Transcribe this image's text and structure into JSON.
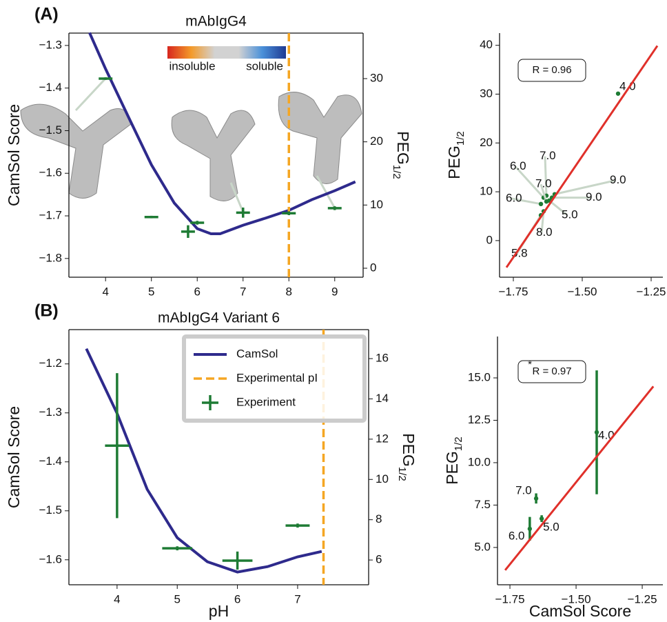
{
  "chart_data": [
    {
      "type": "line",
      "panel": "(A)",
      "title": "mAbIgG4",
      "ylabel": "CamSol Score",
      "y2label": "PEG",
      "y2label_sub": "1/2",
      "colorbar_labels": [
        "insoluble",
        "soluble"
      ],
      "xlim": [
        3.2,
        9.62
      ],
      "xticks": [
        4,
        5,
        6,
        7,
        8,
        9
      ],
      "ylim": [
        -1.844,
        -1.271
      ],
      "yticks": [
        {
          "value": -1.8,
          "label": "−1.8"
        },
        {
          "value": -1.7,
          "label": "−1.7"
        },
        {
          "value": -1.6,
          "label": "−1.6"
        },
        {
          "value": -1.5,
          "label": "−1.5"
        },
        {
          "value": -1.4,
          "label": "−1.4"
        },
        {
          "value": -1.3,
          "label": "−1.3"
        }
      ],
      "y2lim": [
        -1.42,
        37.2
      ],
      "y2ticks": [
        0,
        10,
        20,
        30
      ],
      "series": [
        {
          "kind": "line",
          "color": "#2e2a8c",
          "x": [
            3.65,
            4,
            4.5,
            5,
            5.5,
            6,
            6.3,
            6.5,
            7,
            7.5,
            8,
            8.5,
            9,
            9.45
          ],
          "values": [
            -1.27,
            -1.355,
            -1.468,
            -1.58,
            -1.67,
            -1.73,
            -1.742,
            -1.742,
            -1.722,
            -1.705,
            -1.687,
            -1.662,
            -1.641,
            -1.62
          ]
        },
        {
          "kind": "vline",
          "color": "#f5a623",
          "x": 8
        },
        {
          "kind": "errorbar",
          "axis": "y2",
          "color": "#1e7b34",
          "x": [
            4,
            5,
            5.8,
            6,
            7,
            8,
            9
          ],
          "values": [
            30,
            8.1,
            5.8,
            7.2,
            8.8,
            8.7,
            9.5
          ],
          "xerr": [
            0.15,
            0.15,
            0.15,
            0.15,
            0.15,
            0.15,
            0.15
          ],
          "yerr": [
            0.2,
            0.2,
            1,
            0.3,
            0.8,
            0.3,
            0.3
          ]
        }
      ]
    },
    {
      "type": "scatter",
      "ylabel": "PEG",
      "ylabel_sub": "1/2",
      "annotation": "R = 0.96",
      "xlim": [
        -1.8,
        -1.2075
      ],
      "xticks": [
        {
          "value": -1.75,
          "label": "−1.75"
        },
        {
          "value": -1.5,
          "label": "−1.50"
        },
        {
          "value": -1.25,
          "label": "−1.25"
        }
      ],
      "ylim": [
        -7.5,
        42.5
      ],
      "yticks": [
        0,
        10,
        20,
        30,
        40
      ],
      "series": [
        {
          "kind": "scatter",
          "color": "#1e7b34",
          "x": [
            -1.37,
            -1.62,
            -1.65,
            -1.64,
            -1.65,
            -1.63,
            -1.63,
            -1.64,
            -1.6,
            -1.61
          ],
          "values": [
            30.1,
            8.2,
            5.2,
            8.8,
            7.5,
            9.2,
            8.0,
            6.0,
            9.5,
            8.8
          ],
          "labels": [
            "4.0",
            "5.0",
            "5.8",
            "6.0",
            "6.0",
            "7.0",
            "7.0",
            "8.0",
            "9.0",
            "9.0"
          ]
        },
        {
          "kind": "fit",
          "color": "#e0302a",
          "x": [
            -1.775,
            -1.2275
          ],
          "values": [
            -5.5,
            39.9
          ]
        }
      ]
    },
    {
      "type": "line",
      "panel": "(B)",
      "title": "mAbIgG4 Variant 6",
      "ylabel": "CamSol Score",
      "xlabel": "pH",
      "y2label": "PEG",
      "y2label_sub": "1/2",
      "legend": "upper right",
      "xlim": [
        3.2,
        8.18
      ],
      "xticks": [
        4,
        5,
        6,
        7
      ],
      "ylim": [
        -1.651,
        -1.13
      ],
      "yticks": [
        {
          "value": -1.6,
          "label": "−1.6"
        },
        {
          "value": -1.5,
          "label": "−1.5"
        },
        {
          "value": -1.4,
          "label": "−1.4"
        },
        {
          "value": -1.3,
          "label": "−1.3"
        },
        {
          "value": -1.2,
          "label": "−1.2"
        }
      ],
      "y2lim": [
        4.77,
        17.44
      ],
      "y2ticks": [
        6,
        8,
        10,
        12,
        14,
        16
      ],
      "series": [
        {
          "kind": "line",
          "name": "CamSol",
          "color": "#2e2a8c",
          "x": [
            3.49,
            4,
            4.5,
            5,
            5.5,
            6,
            6.5,
            7,
            7.4
          ],
          "values": [
            -1.169,
            -1.301,
            -1.456,
            -1.555,
            -1.604,
            -1.625,
            -1.614,
            -1.594,
            -1.583
          ]
        },
        {
          "kind": "vline",
          "name": "Experimental pI",
          "color": "#f5a623",
          "x": 7.43
        },
        {
          "kind": "errorbar",
          "name": "Experiment",
          "axis": "y2",
          "color": "#1e7b34",
          "x": [
            4,
            5,
            6,
            7
          ],
          "values": [
            11.68,
            6.58,
            5.97,
            7.71
          ],
          "xerr": [
            0.2,
            0.25,
            0.25,
            0.2
          ],
          "yerr": [
            3.6,
            0.1,
            0.45,
            0.1
          ]
        }
      ]
    },
    {
      "type": "scatter",
      "ylabel": "PEG",
      "ylabel_sub": "1/2",
      "xlabel": "CamSol Score",
      "annotation": "R = 0.97",
      "annotation_mark": "*",
      "xlim": [
        -1.797,
        -1.172
      ],
      "xticks": [
        {
          "value": -1.75,
          "label": "−1.75"
        },
        {
          "value": -1.5,
          "label": "−1.50"
        },
        {
          "value": -1.25,
          "label": "−1.25"
        }
      ],
      "ylim": [
        2.8,
        17.44
      ],
      "yticks": [
        {
          "value": 5,
          "label": "5.0"
        },
        7.5,
        {
          "value": 10,
          "label": "10.0"
        },
        12.5,
        {
          "value": 15,
          "label": "15.0"
        }
      ],
      "series": [
        {
          "kind": "scatter",
          "color": "#1e7b34",
          "x": [
            -1.422,
            -1.651,
            -1.63,
            -1.675
          ],
          "values": [
            11.79,
            7.89,
            6.7,
            6.1
          ],
          "yerr": [
            3.65,
            0.3,
            0.2,
            0.7
          ],
          "labels": [
            "4.0",
            "7.0",
            "5.0",
            "6.0"
          ]
        },
        {
          "kind": "fit",
          "color": "#e0302a",
          "x": [
            -1.768,
            -1.208
          ],
          "values": [
            3.66,
            14.5
          ]
        }
      ]
    }
  ]
}
